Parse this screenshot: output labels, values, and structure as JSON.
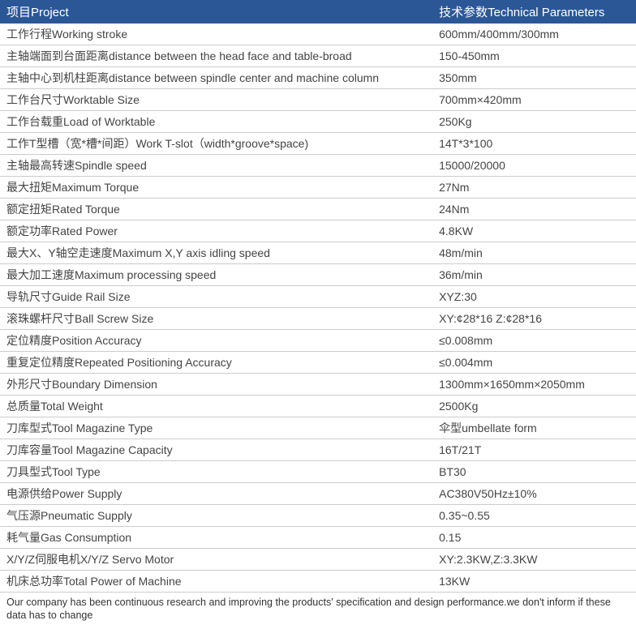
{
  "table": {
    "header": {
      "project": "项目Project",
      "params": "技术参数Technical Parameters"
    },
    "rows": [
      {
        "project": "工作行程Working stroke",
        "value": "600mm/400mm/300mm"
      },
      {
        "project": "主轴端面到台面距离distance between the head face and table-broad",
        "value": "150-450mm"
      },
      {
        "project": "主轴中心到机柱距离distance between spindle center and machine column",
        "value": "350mm"
      },
      {
        "project": "工作台尺寸Worktable Size",
        "value": "700mm×420mm"
      },
      {
        "project": "工作台载重Load of Worktable",
        "value": "250Kg"
      },
      {
        "project": "工作T型槽（宽*槽*间距）Work T-slot（width*groove*space)",
        "value": "14T*3*100"
      },
      {
        "project": "主轴最高转速Spindle speed",
        "value": "15000/20000"
      },
      {
        "project": "最大扭矩Maximum Torque",
        "value": "27Nm"
      },
      {
        "project": "额定扭矩Rated Torque",
        "value": "24Nm"
      },
      {
        "project": "额定功率Rated Power",
        "value": "4.8KW"
      },
      {
        "project": "最大X、Y轴空走速度Maximum X,Y axis idling speed",
        "value": "48m/min"
      },
      {
        "project": "最大加工速度Maximum processing speed",
        "value": "36m/min"
      },
      {
        "project": "导轨尺寸Guide Rail Size",
        "value": "XYZ:30"
      },
      {
        "project": "滚珠螺杆尺寸Ball Screw Size",
        "value": "XY:¢28*16  Z:¢28*16"
      },
      {
        "project": "定位精度Position Accuracy",
        "value": "≤0.008mm"
      },
      {
        "project": "重复定位精度Repeated Positioning Accuracy",
        "value": "≤0.004mm"
      },
      {
        "project": "外形尺寸Boundary Dimension",
        "value": "1300mm×1650mm×2050mm"
      },
      {
        "project": "总质量Total Weight",
        "value": "2500Kg"
      },
      {
        "project": "刀库型式Tool Magazine Type",
        "value": "伞型umbellate form"
      },
      {
        "project": "刀库容量Tool Magazine Capacity",
        "value": "16T/21T"
      },
      {
        "project": "刀具型式Tool Type",
        "value": "BT30"
      },
      {
        "project": "电源供给Power Supply",
        "value": "AC380V50Hz±10%"
      },
      {
        "project": "气压源Pneumatic Supply",
        "value": "0.35~0.55"
      },
      {
        "project": "耗气量Gas Consumption",
        "value": "0.15"
      },
      {
        "project": "X/Y/Z伺服电机X/Y/Z Servo Motor",
        "value": "XY:2.3KW,Z:3.3KW"
      },
      {
        "project": "机床总功率Total Power of Machine",
        "value": "13KW"
      }
    ],
    "footnote": "Our company has been continuous research and improving the products' specification and design performance.we don't inform if these data has to change"
  },
  "style": {
    "header_bg": "#2b5797",
    "header_text_color": "#ffffff",
    "row_bg": "#ffffff",
    "border_color": "#cccccc",
    "text_color": "#444444",
    "header_fontsize": 15,
    "cell_fontsize": 14,
    "footnote_fontsize": 12.5,
    "col_project_width_pct": 68,
    "col_params_width_pct": 32
  }
}
